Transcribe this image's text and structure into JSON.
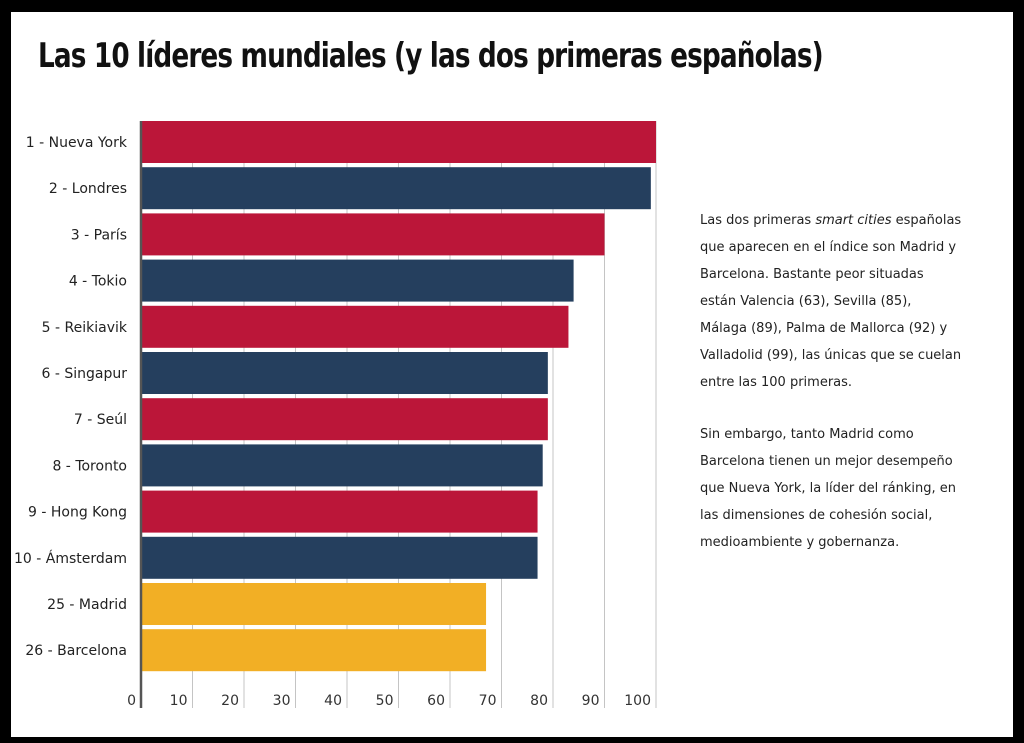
{
  "title": "Las 10 líderes mundiales (y las dos primeras españolas)",
  "colors": {
    "red": "#bb1639",
    "navy": "#253f5e",
    "gold": "#f2af25",
    "grid": "#c4c4c4",
    "axis": "#555555"
  },
  "chart_data": {
    "type": "bar",
    "orientation": "horizontal",
    "title": "Las 10 líderes mundiales (y las dos primeras españolas)",
    "categories": [
      "1 - Nueva York",
      "2 - Londres",
      "3 - París",
      "4 - Tokio",
      "5 - Reikiavik",
      "6 - Singapur",
      "7 - Seúl",
      "8 - Toronto",
      "9 - Hong Kong",
      "10 - Ámsterdam",
      "25 - Madrid",
      "26 - Barcelona"
    ],
    "values": [
      100,
      99,
      90,
      84,
      83,
      79,
      79,
      78,
      77,
      77,
      67,
      67
    ],
    "bar_colors": [
      "red",
      "navy",
      "red",
      "navy",
      "red",
      "navy",
      "red",
      "navy",
      "red",
      "navy",
      "gold",
      "gold"
    ],
    "x_ticks": [
      0,
      10,
      20,
      30,
      40,
      50,
      60,
      70,
      80,
      90,
      100
    ],
    "xlim": [
      0,
      100
    ],
    "grid": true,
    "legend": "none"
  },
  "side_text": {
    "p1_before": "Las dos primeras ",
    "p1_em": "smart cities",
    "p1_after": " españolas que aparecen en el índice son Madrid y Barcelona. Bastante peor situadas están Valencia (63), Sevilla (85), Málaga (89), Palma de Mallorca (92) y Valladolid (99), las únicas que se cuelan entre las 100 primeras.",
    "p2": "Sin embargo, tanto Madrid como Barcelona tienen un mejor desempeño que Nueva York, la líder del ránking, en las dimensiones de cohesión social, medioambiente y gobernanza."
  }
}
